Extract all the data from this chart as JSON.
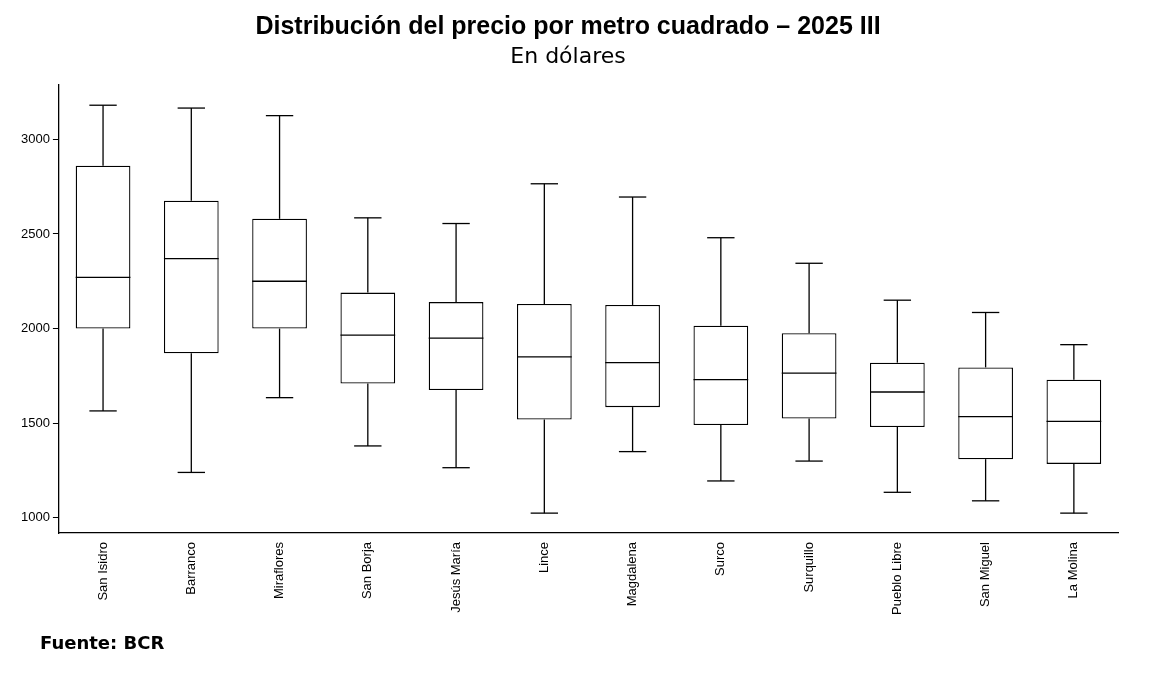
{
  "chart_data": {
    "type": "box",
    "title": "Distribución del precio por metro cuadrado – 2025 III",
    "subtitle": "En dólares",
    "categories": [
      "San Isidro",
      "Barranco",
      "Miraflores",
      "San Borja",
      "Jesús María",
      "Lince",
      "Magdalena",
      "Surco",
      "Surquillo",
      "Pueblo Libre",
      "San Miguel",
      "La Molina"
    ],
    "boxes": [
      {
        "low": 1565,
        "q1": 2000,
        "median": 2270,
        "q3": 2860,
        "high": 3180
      },
      {
        "low": 1240,
        "q1": 1870,
        "median": 2370,
        "q3": 2675,
        "high": 3165
      },
      {
        "low": 1635,
        "q1": 2000,
        "median": 2250,
        "q3": 2580,
        "high": 3125
      },
      {
        "low": 1380,
        "q1": 1710,
        "median": 1965,
        "q3": 2190,
        "high": 2585
      },
      {
        "low": 1265,
        "q1": 1675,
        "median": 1950,
        "q3": 2140,
        "high": 2555
      },
      {
        "low": 1025,
        "q1": 1520,
        "median": 1850,
        "q3": 2130,
        "high": 2765
      },
      {
        "low": 1350,
        "q1": 1585,
        "median": 1820,
        "q3": 2125,
        "high": 2695
      },
      {
        "low": 1195,
        "q1": 1490,
        "median": 1730,
        "q3": 2015,
        "high": 2480
      },
      {
        "low": 1300,
        "q1": 1525,
        "median": 1765,
        "q3": 1975,
        "high": 2345
      },
      {
        "low": 1135,
        "q1": 1480,
        "median": 1665,
        "q3": 1820,
        "high": 2150
      },
      {
        "low": 1090,
        "q1": 1310,
        "median": 1535,
        "q3": 1795,
        "high": 2085
      },
      {
        "low": 1025,
        "q1": 1285,
        "median": 1510,
        "q3": 1730,
        "high": 1915
      }
    ],
    "ylim": [
      920,
      3290
    ],
    "yticks": [
      1000,
      1500,
      2000,
      2500,
      3000
    ],
    "annotations": [
      "Fuente: BCR"
    ]
  }
}
